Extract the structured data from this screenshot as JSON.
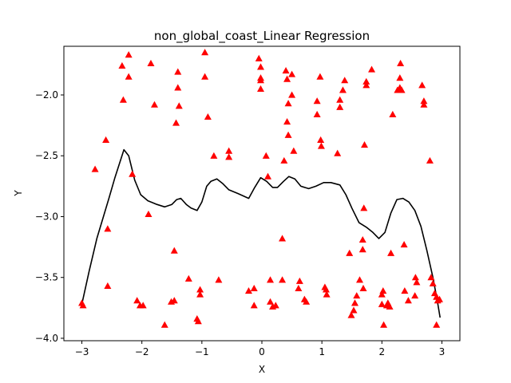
{
  "chart_data": {
    "type": "scatter",
    "title": "non_global_coast_Linear Regression",
    "xlabel": "X",
    "ylabel": "Y",
    "xlim": [
      -3.3,
      3.3
    ],
    "ylim": [
      -4.02,
      -1.6
    ],
    "grid": false,
    "xticks": [
      -3,
      -2,
      -1,
      0,
      1,
      2,
      3
    ],
    "xtick_labels": [
      "−3",
      "−2",
      "−1",
      "0",
      "1",
      "2",
      "3"
    ],
    "yticks": [
      -4.0,
      -3.5,
      -3.0,
      -2.5,
      -2.0
    ],
    "ytick_labels": [
      "−4.0",
      "−3.5",
      "−3.0",
      "−2.5",
      "−2.0"
    ],
    "marker_color": "#ff0000",
    "line_color": "#000000",
    "points": [
      [
        -2.22,
        -1.67
      ],
      [
        -2.33,
        -1.76
      ],
      [
        -2.22,
        -1.85
      ],
      [
        -1.85,
        -1.74
      ],
      [
        -2.31,
        -2.04
      ],
      [
        -1.79,
        -2.08
      ],
      [
        -1.4,
        -1.81
      ],
      [
        -1.4,
        -1.94
      ],
      [
        -1.38,
        -2.09
      ],
      [
        -1.43,
        -2.23
      ],
      [
        -0.95,
        -1.65
      ],
      [
        -0.95,
        -1.85
      ],
      [
        -0.9,
        -2.18
      ],
      [
        -2.6,
        -2.37
      ],
      [
        -2.78,
        -2.61
      ],
      [
        -2.16,
        -2.65
      ],
      [
        -1.89,
        -2.98
      ],
      [
        -2.57,
        -3.1
      ],
      [
        -0.8,
        -2.5
      ],
      [
        -0.55,
        -2.46
      ],
      [
        -0.55,
        -2.51
      ],
      [
        -1.46,
        -3.28
      ],
      [
        -2.57,
        -3.57
      ],
      [
        -2.08,
        -3.69
      ],
      [
        -2.03,
        -3.73
      ],
      [
        -1.98,
        -3.73
      ],
      [
        -1.62,
        -3.89
      ],
      [
        -1.51,
        -3.7
      ],
      [
        -1.46,
        -3.69
      ],
      [
        -1.22,
        -3.51
      ],
      [
        -1.08,
        -3.84
      ],
      [
        -1.06,
        -3.86
      ],
      [
        -1.03,
        -3.6
      ],
      [
        -1.03,
        -3.64
      ],
      [
        -0.72,
        -3.52
      ],
      [
        -0.22,
        -3.61
      ],
      [
        -0.13,
        -3.59
      ],
      [
        -0.13,
        -3.73
      ],
      [
        -3.0,
        -3.71
      ],
      [
        -2.98,
        -3.73
      ],
      [
        -0.05,
        -1.7
      ],
      [
        -0.02,
        -1.77
      ],
      [
        -0.02,
        -1.86
      ],
      [
        -0.02,
        -1.88
      ],
      [
        -0.02,
        -1.95
      ],
      [
        0.07,
        -2.5
      ],
      [
        0.1,
        -2.67
      ],
      [
        0.4,
        -1.8
      ],
      [
        0.42,
        -1.87
      ],
      [
        0.5,
        -1.83
      ],
      [
        0.5,
        -2.0
      ],
      [
        0.44,
        -2.07
      ],
      [
        0.42,
        -2.22
      ],
      [
        0.44,
        -2.33
      ],
      [
        0.53,
        -2.46
      ],
      [
        0.37,
        -2.54
      ],
      [
        0.34,
        -3.18
      ],
      [
        0.14,
        -3.52
      ],
      [
        0.14,
        -3.7
      ],
      [
        0.18,
        -3.74
      ],
      [
        0.23,
        -3.73
      ],
      [
        0.34,
        -3.52
      ],
      [
        0.63,
        -3.53
      ],
      [
        0.61,
        -3.59
      ],
      [
        0.71,
        -3.68
      ],
      [
        0.74,
        -3.7
      ],
      [
        0.97,
        -1.85
      ],
      [
        0.92,
        -2.05
      ],
      [
        0.92,
        -2.16
      ],
      [
        0.98,
        -2.37
      ],
      [
        0.99,
        -2.42
      ],
      [
        1.26,
        -2.48
      ],
      [
        1.3,
        -2.04
      ],
      [
        1.3,
        -2.1
      ],
      [
        1.35,
        -1.96
      ],
      [
        1.38,
        -1.88
      ],
      [
        1.05,
        -3.58
      ],
      [
        1.07,
        -3.6
      ],
      [
        1.08,
        -3.64
      ],
      [
        1.46,
        -3.3
      ],
      [
        1.49,
        -3.81
      ],
      [
        1.53,
        -3.77
      ],
      [
        1.55,
        -3.71
      ],
      [
        1.58,
        -3.65
      ],
      [
        1.63,
        -3.52
      ],
      [
        1.69,
        -3.59
      ],
      [
        1.68,
        -3.19
      ],
      [
        1.68,
        -3.27
      ],
      [
        1.7,
        -2.93
      ],
      [
        1.71,
        -2.41
      ],
      [
        1.74,
        -1.89
      ],
      [
        1.74,
        -1.92
      ],
      [
        1.83,
        -1.79
      ],
      [
        2.0,
        -3.64
      ],
      [
        2.0,
        -3.72
      ],
      [
        2.02,
        -3.61
      ],
      [
        2.03,
        -3.89
      ],
      [
        2.08,
        -3.73
      ],
      [
        2.1,
        -3.71
      ],
      [
        2.13,
        -3.74
      ],
      [
        2.15,
        -3.3
      ],
      [
        2.18,
        -2.16
      ],
      [
        2.26,
        -1.96
      ],
      [
        2.3,
        -1.94
      ],
      [
        2.3,
        -1.86
      ],
      [
        2.31,
        -1.74
      ],
      [
        2.33,
        -1.96
      ],
      [
        2.37,
        -3.23
      ],
      [
        2.38,
        -3.61
      ],
      [
        2.44,
        -3.69
      ],
      [
        2.55,
        -3.65
      ],
      [
        2.56,
        -3.5
      ],
      [
        2.58,
        -3.54
      ],
      [
        2.67,
        -1.92
      ],
      [
        2.7,
        -2.05
      ],
      [
        2.7,
        -2.08
      ],
      [
        2.8,
        -2.54
      ],
      [
        2.82,
        -3.5
      ],
      [
        2.85,
        -3.55
      ],
      [
        2.88,
        -3.63
      ],
      [
        2.91,
        -3.66
      ],
      [
        2.91,
        -3.89
      ],
      [
        2.93,
        -3.69
      ],
      [
        2.96,
        -3.68
      ]
    ],
    "curve": [
      [
        -3.0,
        -3.72
      ],
      [
        -2.88,
        -3.45
      ],
      [
        -2.75,
        -3.18
      ],
      [
        -2.55,
        -2.85
      ],
      [
        -2.45,
        -2.68
      ],
      [
        -2.3,
        -2.45
      ],
      [
        -2.22,
        -2.5
      ],
      [
        -2.12,
        -2.7
      ],
      [
        -2.02,
        -2.82
      ],
      [
        -1.9,
        -2.87
      ],
      [
        -1.75,
        -2.9
      ],
      [
        -1.62,
        -2.92
      ],
      [
        -1.5,
        -2.9
      ],
      [
        -1.42,
        -2.86
      ],
      [
        -1.35,
        -2.85
      ],
      [
        -1.26,
        -2.9
      ],
      [
        -1.18,
        -2.93
      ],
      [
        -1.08,
        -2.95
      ],
      [
        -1.0,
        -2.88
      ],
      [
        -0.92,
        -2.75
      ],
      [
        -0.85,
        -2.71
      ],
      [
        -0.75,
        -2.69
      ],
      [
        -0.65,
        -2.73
      ],
      [
        -0.55,
        -2.78
      ],
      [
        -0.4,
        -2.81
      ],
      [
        -0.22,
        -2.85
      ],
      [
        -0.12,
        -2.76
      ],
      [
        -0.02,
        -2.68
      ],
      [
        0.08,
        -2.71
      ],
      [
        0.18,
        -2.76
      ],
      [
        0.26,
        -2.76
      ],
      [
        0.36,
        -2.71
      ],
      [
        0.45,
        -2.67
      ],
      [
        0.55,
        -2.69
      ],
      [
        0.65,
        -2.75
      ],
      [
        0.78,
        -2.77
      ],
      [
        0.9,
        -2.75
      ],
      [
        1.03,
        -2.72
      ],
      [
        1.15,
        -2.72
      ],
      [
        1.3,
        -2.74
      ],
      [
        1.4,
        -2.82
      ],
      [
        1.5,
        -2.93
      ],
      [
        1.62,
        -3.05
      ],
      [
        1.75,
        -3.09
      ],
      [
        1.85,
        -3.13
      ],
      [
        1.95,
        -3.18
      ],
      [
        2.05,
        -3.13
      ],
      [
        2.15,
        -2.97
      ],
      [
        2.25,
        -2.86
      ],
      [
        2.35,
        -2.85
      ],
      [
        2.45,
        -2.88
      ],
      [
        2.55,
        -2.95
      ],
      [
        2.65,
        -3.08
      ],
      [
        2.75,
        -3.28
      ],
      [
        2.85,
        -3.5
      ],
      [
        2.92,
        -3.68
      ],
      [
        2.97,
        -3.83
      ]
    ]
  }
}
